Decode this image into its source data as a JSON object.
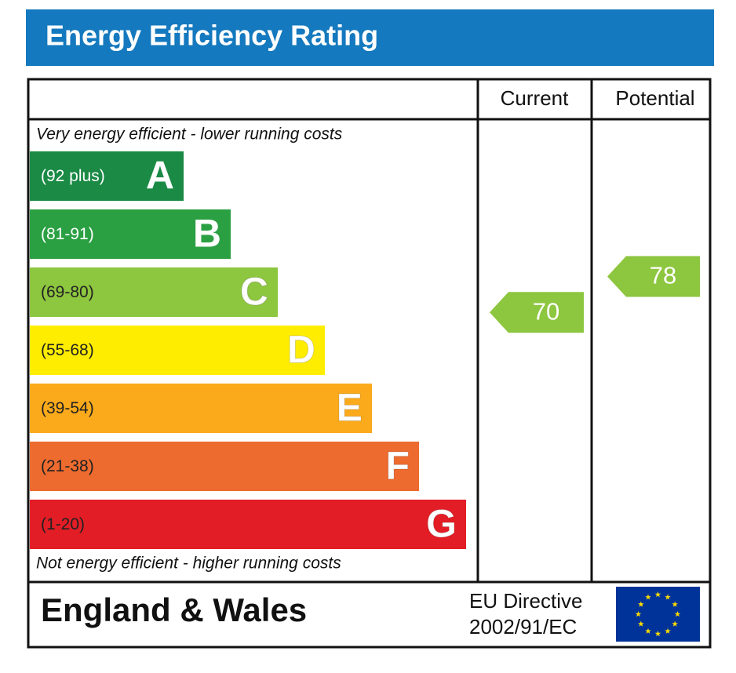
{
  "title": "Energy Efficiency Rating",
  "columns": [
    "Current",
    "Potential"
  ],
  "top_note": "Very energy efficient - lower running costs",
  "bottom_note": "Not energy efficient - higher running costs",
  "bands": [
    {
      "range": "(92 plus)",
      "letter": "A",
      "color": "#1a8a45"
    },
    {
      "range": "(81-91)",
      "letter": "B",
      "color": "#2ba043"
    },
    {
      "range": "(69-80)",
      "letter": "C",
      "color": "#8dc63f"
    },
    {
      "range": "(55-68)",
      "letter": "D",
      "color": "#ffed00"
    },
    {
      "range": "(39-54)",
      "letter": "E",
      "color": "#fbaa1b"
    },
    {
      "range": "(21-38)",
      "letter": "F",
      "color": "#ee6b2f"
    },
    {
      "range": "(1-20)",
      "letter": "G",
      "color": "#e31d25"
    }
  ],
  "ratings": [
    {
      "value": 70
    },
    {
      "value": 78
    }
  ],
  "footer": {
    "region": "England & Wales",
    "directive": [
      "EU Directive",
      "2002/91/EC"
    ]
  }
}
